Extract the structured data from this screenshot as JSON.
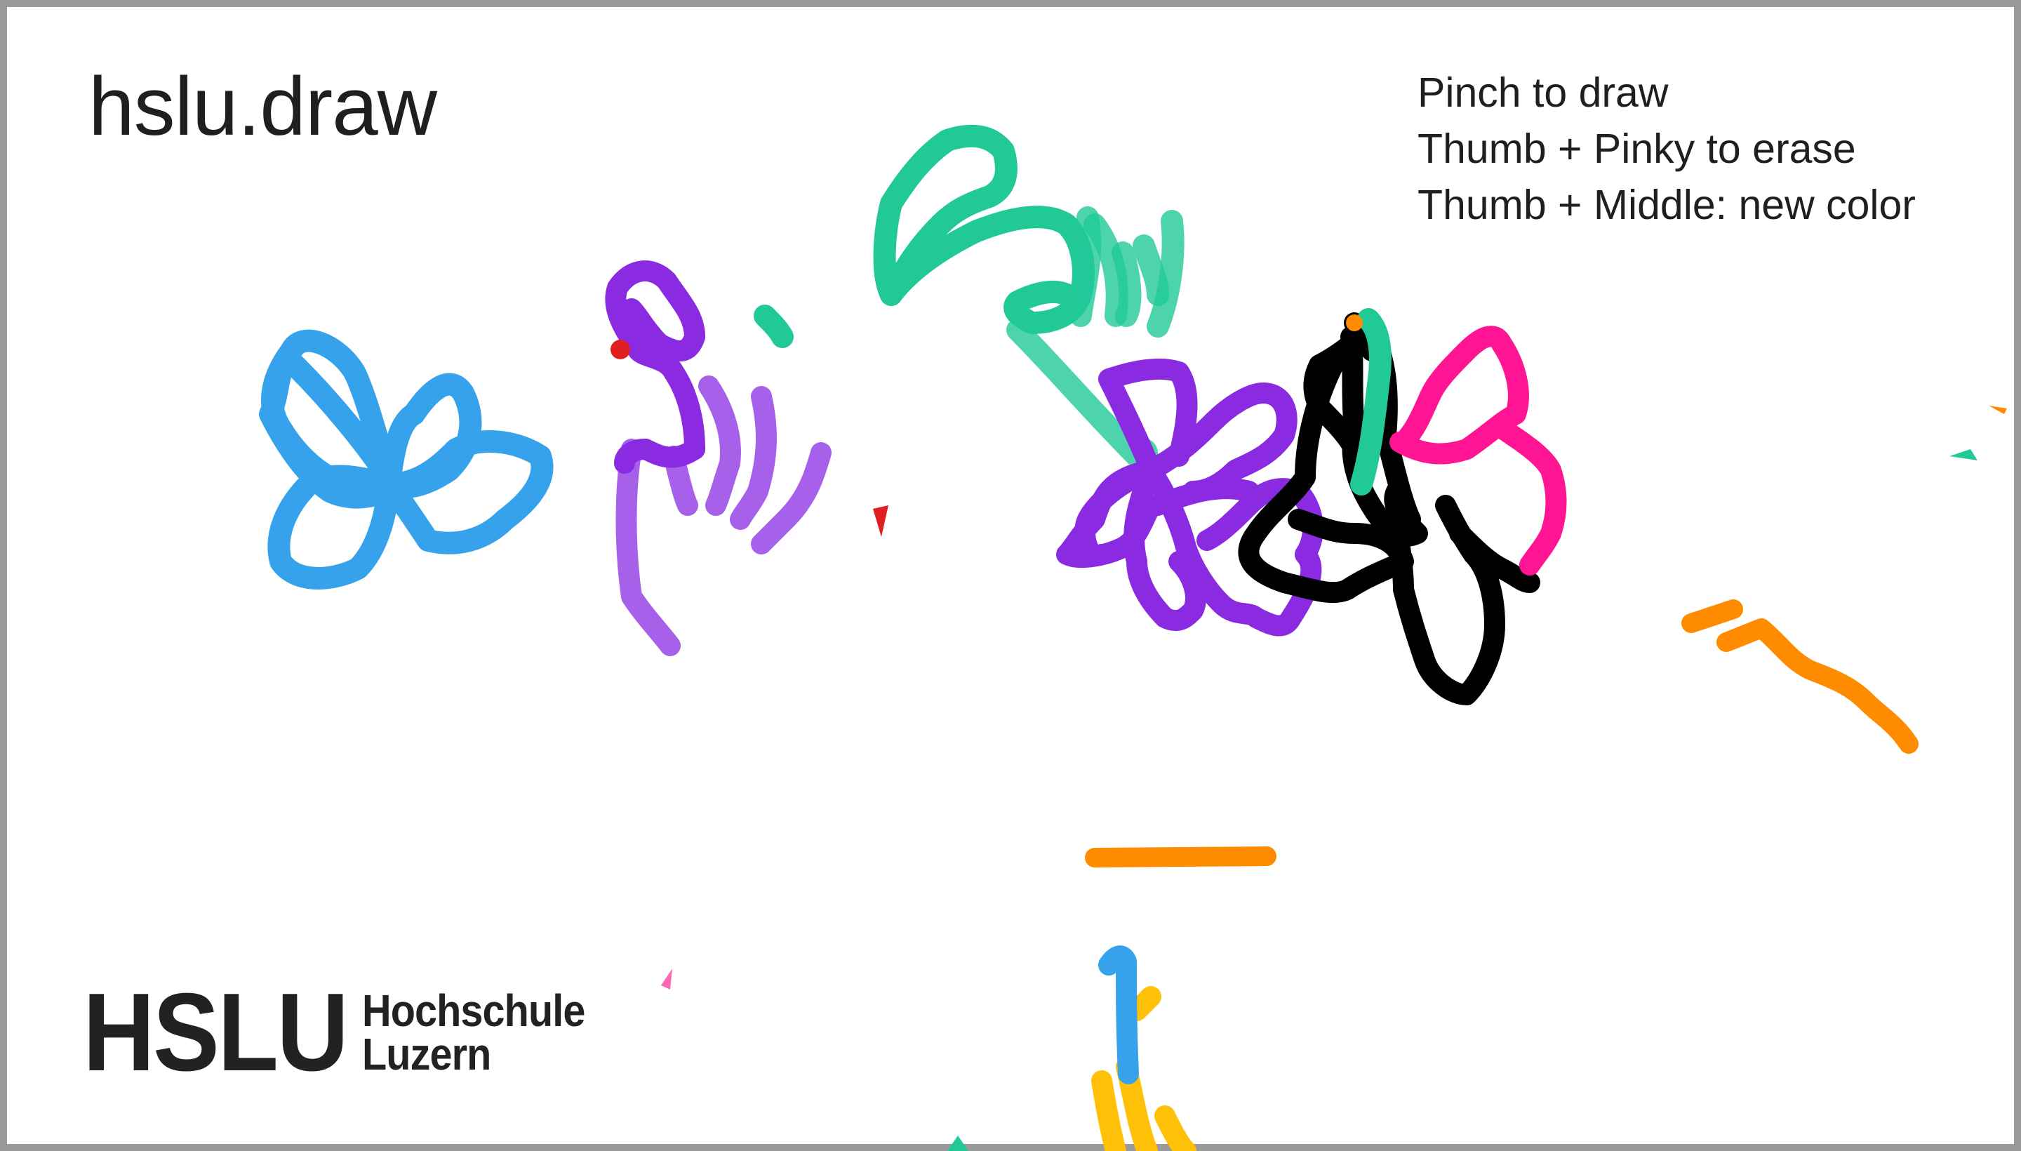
{
  "app": {
    "title": "hslu.draw"
  },
  "instructions": {
    "lines": [
      "Pinch to draw",
      "Thumb + Pinky to erase",
      "Thumb + Middle: new color"
    ]
  },
  "logo": {
    "mark": "HSLU",
    "line1": "Hochschule",
    "line2": "Luzern"
  },
  "palette": {
    "blue": "#36a2eb",
    "purple": "#8a2be2",
    "green": "#21c997",
    "black": "#000000",
    "pink": "#ff1493",
    "orange": "#ff8c00",
    "yellow": "#ffc107",
    "red": "#e02020",
    "border": "#9a9a9a"
  }
}
